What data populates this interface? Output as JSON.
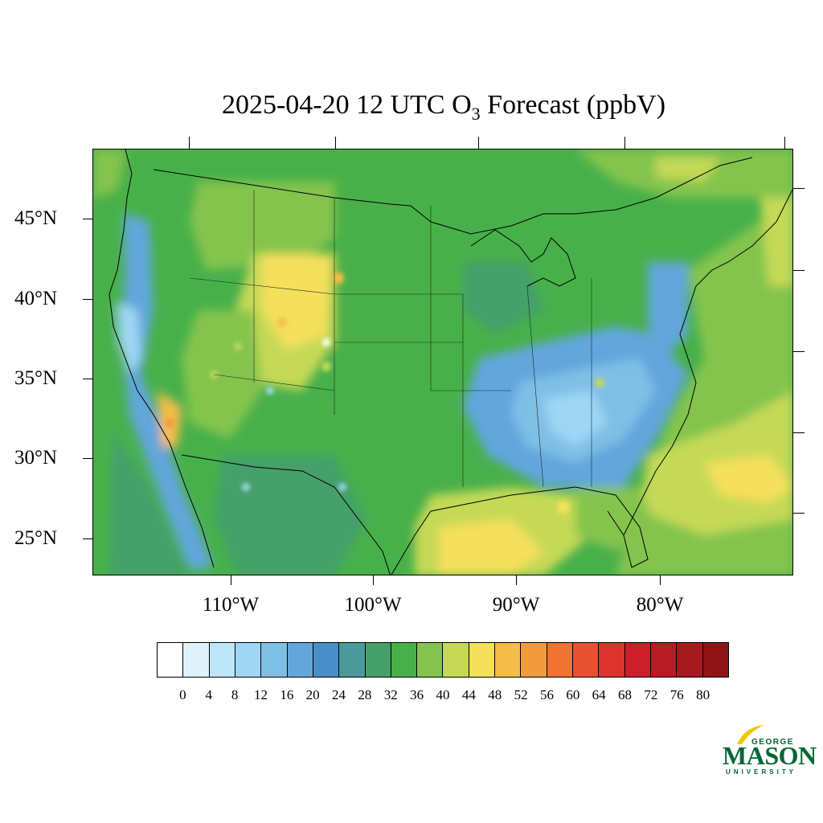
{
  "title": {
    "prefix": "2025-04-20 12 UTC O",
    "subscript": "3",
    "suffix": " Forecast (ppbV)"
  },
  "map": {
    "latitude_labels": [
      "45°N",
      "40°N",
      "35°N",
      "30°N",
      "25°N"
    ],
    "longitude_labels": [
      "110°W",
      "100°W",
      "90°W",
      "80°W"
    ],
    "field": "O3 forecast concentration",
    "units": "ppbV"
  },
  "colorbar": {
    "labels": [
      "0",
      "4",
      "8",
      "12",
      "16",
      "20",
      "24",
      "28",
      "32",
      "36",
      "40",
      "44",
      "48",
      "52",
      "56",
      "60",
      "64",
      "68",
      "72",
      "76",
      "80"
    ],
    "colors": [
      "#ffffff",
      "#dff1fb",
      "#bfe6f8",
      "#9fd6f4",
      "#7fbfe6",
      "#62a6dc",
      "#4a8ec9",
      "#4a9a9b",
      "#45a06a",
      "#48b04a",
      "#84c44e",
      "#c5d957",
      "#f5e05c",
      "#f5bd48",
      "#f29a3e",
      "#ef7333",
      "#e65230",
      "#dd332d",
      "#cc1f2a",
      "#b81b26",
      "#a5191f",
      "#8e1418"
    ]
  },
  "logo": {
    "line1": "GEORGE",
    "line2": "MASON",
    "line3": "UNIVERSITY"
  }
}
